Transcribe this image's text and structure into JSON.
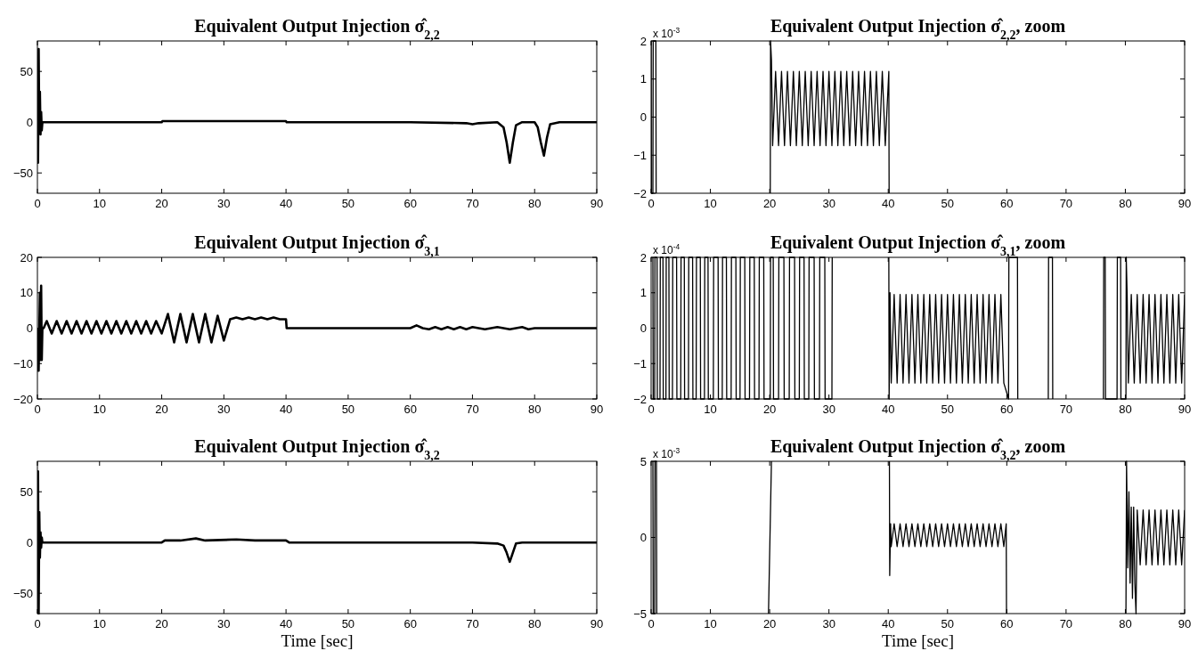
{
  "chart_data": [
    {
      "type": "line",
      "title": "Equivalent Output Injection σ̂$_{2,2}$",
      "xlim": [
        0,
        90
      ],
      "xticks": [
        0,
        10,
        20,
        30,
        40,
        50,
        60,
        70,
        80,
        90
      ],
      "ylim": [
        -70,
        80
      ],
      "yticks": [
        -50,
        0,
        50
      ],
      "grid": false,
      "series": [
        {
          "color": "#000000",
          "x": [
            0,
            0.1,
            0.2,
            0.3,
            0.4,
            0.5,
            0.6,
            0.7,
            0.8,
            1,
            5,
            20,
            20.1,
            40,
            40.1,
            60,
            69,
            70,
            71,
            74,
            75,
            75.5,
            76,
            76.5,
            77,
            78,
            80,
            80.5,
            81,
            81.5,
            82,
            82.5,
            84,
            90
          ],
          "values": [
            0,
            -40,
            72,
            -10,
            30,
            -12,
            10,
            -8,
            0,
            0,
            0,
            0,
            1,
            1,
            0,
            0,
            -1,
            -2,
            -1,
            0,
            -5,
            -20,
            -40,
            -20,
            -3,
            0,
            0,
            -5,
            -20,
            -33,
            -15,
            -2,
            0,
            0
          ]
        }
      ]
    },
    {
      "type": "line",
      "title": "Equivalent Output Injection σ̂$_{2,2}$, zoom",
      "xlim": [
        0,
        90
      ],
      "xticks": [
        0,
        10,
        20,
        30,
        40,
        50,
        60,
        70,
        80,
        90
      ],
      "ylim": [
        -2,
        2
      ],
      "yticks": [
        -2,
        -1,
        0,
        1,
        2
      ],
      "grid": false,
      "annotations": [
        "x 10$^{-3}$"
      ],
      "series": [
        {
          "color": "#000000",
          "x": [
            0,
            0.05,
            0.3,
            0.35,
            0.8,
            0.85,
            1,
            20.1,
            20.15,
            20.3,
            20.5,
            21,
            21.5,
            22,
            22.5,
            23,
            23.5,
            24,
            24.5,
            25,
            25.5,
            26,
            26.5,
            27,
            27.5,
            28,
            28.5,
            29,
            29.5,
            30,
            30.5,
            31,
            31.5,
            32,
            32.5,
            33,
            33.5,
            34,
            34.5,
            35,
            35.5,
            36,
            36.5,
            37,
            37.5,
            38,
            38.5,
            39,
            39.5,
            40.1,
            40.15
          ],
          "values": [
            2,
            -2,
            -2,
            2,
            2,
            -2,
            null,
            -2,
            2,
            1.5,
            -0.75,
            1.2,
            -0.75,
            1.2,
            -0.75,
            1.2,
            -0.75,
            1.2,
            -0.75,
            1.2,
            -0.75,
            1.2,
            -0.75,
            1.2,
            -0.75,
            1.2,
            -0.75,
            1.2,
            -0.75,
            1.2,
            -0.75,
            1.2,
            -0.75,
            1.2,
            -0.75,
            1.2,
            -0.75,
            1.2,
            -0.75,
            1.2,
            -0.75,
            1.2,
            -0.75,
            1.2,
            -0.75,
            1.2,
            -0.75,
            1.2,
            -0.75,
            1.2,
            -2
          ]
        }
      ]
    },
    {
      "type": "line",
      "title": "Equivalent Output Injection σ̂$_{3,1}$",
      "xlim": [
        0,
        90
      ],
      "xticks": [
        0,
        10,
        20,
        30,
        40,
        50,
        60,
        70,
        80,
        90
      ],
      "ylim": [
        -20,
        20
      ],
      "yticks": [
        -20,
        -10,
        0,
        10,
        20
      ],
      "grid": false,
      "series": [
        {
          "color": "#000000",
          "x": [
            0,
            0.1,
            0.2,
            0.4,
            0.5,
            0.6,
            0.7,
            0.8,
            1,
            1.5,
            2.3,
            3.1,
            3.9,
            4.7,
            5.5,
            6.3,
            7.1,
            7.9,
            8.7,
            9.5,
            10.3,
            11.1,
            11.9,
            12.7,
            13.5,
            14.3,
            15.1,
            15.9,
            16.7,
            17.5,
            18.3,
            19.1,
            20,
            21,
            22,
            23,
            24,
            25,
            26,
            27,
            28,
            29,
            30,
            31,
            32,
            33,
            34,
            35,
            36,
            37,
            38,
            39,
            40,
            40.1,
            60,
            61,
            62,
            63,
            64,
            65,
            66,
            67,
            68,
            69,
            70,
            72,
            74,
            76,
            78,
            79,
            80,
            90
          ],
          "values": [
            0,
            -12,
            -12,
            10,
            -9,
            12,
            -9,
            0,
            0,
            2,
            -1.5,
            2,
            -1.5,
            2,
            -1.5,
            2,
            -1.5,
            2,
            -1.5,
            2,
            -1.5,
            2,
            -1.5,
            2,
            -1.5,
            2,
            -1.5,
            2,
            -1.5,
            2,
            -1.5,
            2,
            -1.5,
            4,
            -4,
            4,
            -4,
            4,
            -4,
            4,
            -4,
            3.5,
            -3.5,
            2.5,
            3,
            2.5,
            3,
            2.5,
            3,
            2.5,
            3,
            2.5,
            2.5,
            0,
            0,
            0.8,
            0,
            -0.3,
            0.3,
            -0.3,
            0.3,
            -0.3,
            0.3,
            -0.3,
            0.3,
            -0.3,
            0.3,
            -0.3,
            0.3,
            -0.3,
            0,
            0
          ]
        }
      ]
    },
    {
      "type": "line",
      "title": "Equivalent Output Injection σ̂$_{3,1}$, zoom",
      "xlim": [
        0,
        90
      ],
      "xticks": [
        0,
        10,
        20,
        30,
        40,
        50,
        60,
        70,
        80,
        90
      ],
      "ylim": [
        -2,
        2
      ],
      "yticks": [
        -2,
        -1,
        0,
        1,
        2
      ],
      "grid": false,
      "annotations": [
        "x 10$^{-4}$"
      ],
      "series": [
        {
          "color": "#000000",
          "x": [
            0.3,
            0.35,
            0.6,
            0.65,
            1,
            1.05,
            1.5,
            1.55,
            2,
            2.05,
            2.5,
            2.55,
            3,
            3.05,
            3.6,
            3.65,
            4.3,
            4.35,
            5,
            5.05,
            5.6,
            5.65,
            6.3,
            6.35,
            7,
            7.05,
            7.6,
            7.65,
            8.3,
            8.35,
            9,
            9.05,
            9.6,
            9.65,
            10.5,
            10.55,
            11.3,
            11.35,
            12,
            12.05,
            12.7,
            12.75,
            13.5,
            13.55,
            14.3,
            14.35,
            15,
            15.05,
            15.8,
            15.85,
            16.6,
            16.65,
            17.4,
            17.45,
            18.2,
            18.25,
            19,
            19.05,
            20.1,
            20.15,
            20.6,
            20.65,
            21.5,
            21.55,
            22.4,
            22.45,
            23.3,
            23.35,
            24.2,
            24.25,
            25,
            25.05,
            25.8,
            25.85,
            26.6,
            26.65,
            27.5,
            27.55,
            28.4,
            28.45,
            29.3,
            29.35,
            30.5,
            30.55,
            31,
            40.1,
            40.15,
            40.3,
            40.5,
            41,
            41.5,
            42,
            42.5,
            43,
            43.5,
            44,
            44.5,
            45,
            45.5,
            46,
            46.5,
            47,
            47.5,
            48,
            48.5,
            49,
            49.5,
            50,
            50.5,
            51,
            51.5,
            52,
            52.5,
            53,
            53.5,
            54,
            54.5,
            55,
            55.5,
            56,
            56.5,
            57,
            57.5,
            58,
            58.5,
            59,
            59.5,
            60.3,
            60.35,
            61.8,
            61.85,
            64,
            67,
            67.05,
            67.7,
            67.75,
            72,
            76.3,
            76.35,
            76.6,
            76.65,
            78.6,
            78.65,
            79.2,
            79.25,
            80.1,
            80.15,
            80.3,
            80.5,
            81,
            81.5,
            82,
            82.5,
            83,
            83.5,
            84,
            84.5,
            85,
            85.5,
            86,
            86.5,
            87,
            87.5,
            88,
            88.5,
            89,
            89.5,
            90
          ],
          "values": [
            2,
            -2,
            -2,
            2,
            2,
            -2,
            -2,
            2,
            2,
            -2,
            -2,
            2,
            2,
            -2,
            -2,
            2,
            2,
            -2,
            -2,
            2,
            2,
            -2,
            -2,
            2,
            2,
            -2,
            -2,
            2,
            2,
            -2,
            -2,
            2,
            2,
            -2,
            -2,
            2,
            2,
            -2,
            -2,
            2,
            2,
            -2,
            -2,
            2,
            2,
            -2,
            -2,
            2,
            2,
            -2,
            -2,
            2,
            2,
            -2,
            -2,
            2,
            2,
            -2,
            -2,
            2,
            2,
            -2,
            -2,
            2,
            2,
            -2,
            -2,
            2,
            2,
            -2,
            -2,
            2,
            2,
            -2,
            -2,
            2,
            2,
            -2,
            -2,
            2,
            2,
            -2,
            -2,
            2,
            null,
            2,
            -2,
            1,
            -1.55,
            0.95,
            -1.55,
            0.95,
            -1.55,
            0.95,
            -1.55,
            0.95,
            -1.55,
            0.95,
            -1.55,
            0.95,
            -1.55,
            0.95,
            -1.55,
            0.95,
            -1.55,
            0.95,
            -1.55,
            0.95,
            -1.55,
            0.95,
            -1.55,
            0.95,
            -1.55,
            0.95,
            -1.55,
            0.95,
            -1.55,
            0.95,
            -1.55,
            0.95,
            -1.55,
            0.95,
            -1.55,
            0.95,
            -1.55,
            0.95,
            -1.55,
            -2,
            2,
            2,
            -2,
            null,
            -2,
            2,
            2,
            -2,
            null,
            -2,
            2,
            2,
            -2,
            -2,
            2,
            2,
            -2,
            -2,
            2,
            0.95,
            -1.55,
            0.95,
            -1.55,
            0.95,
            -1.55,
            0.95,
            -1.55,
            0.95,
            -1.55,
            0.95,
            -1.55,
            0.95,
            -1.55,
            0.95,
            -1.55,
            0.95,
            -1.55,
            0.95,
            -1.55,
            0.95
          ]
        }
      ]
    },
    {
      "type": "line",
      "title": "Equivalent Output Injection σ̂$_{3,2}$",
      "xlabel": "Time [sec]",
      "xlim": [
        0,
        90
      ],
      "xticks": [
        0,
        10,
        20,
        30,
        40,
        50,
        60,
        70,
        80,
        90
      ],
      "ylim": [
        -70,
        80
      ],
      "yticks": [
        -50,
        0,
        50
      ],
      "grid": false,
      "series": [
        {
          "color": "#000000",
          "x": [
            0,
            0.1,
            0.2,
            0.3,
            0.4,
            0.5,
            0.6,
            0.7,
            0.8,
            1,
            20,
            20.5,
            23,
            25.5,
            27,
            32,
            35,
            38,
            40,
            40.5,
            70,
            74,
            75,
            75.5,
            76,
            76.5,
            77,
            78,
            90
          ],
          "values": [
            0,
            70,
            -70,
            30,
            -15,
            10,
            -5,
            5,
            0,
            0,
            0,
            2,
            2,
            4,
            2,
            3,
            2,
            2,
            2,
            0,
            0,
            -1,
            -3,
            -10,
            -19,
            -10,
            -1,
            0,
            0
          ]
        }
      ]
    },
    {
      "type": "line",
      "title": "Equivalent Output Injection σ̂$_{3,2}$, zoom",
      "xlabel": "Time [sec]",
      "xlim": [
        0,
        90
      ],
      "xticks": [
        0,
        10,
        20,
        30,
        40,
        50,
        60,
        70,
        80,
        90
      ],
      "ylim": [
        -5,
        5
      ],
      "yticks": [
        -5,
        0,
        5
      ],
      "grid": false,
      "annotations": [
        "x 10$^{-3}$"
      ],
      "series": [
        {
          "color": "#000000",
          "x": [
            0.3,
            0.35,
            0.6,
            0.65,
            0.9,
            0.95,
            1,
            19.8,
            20.3,
            21,
            40.2,
            40.25,
            40.4,
            40.5,
            41,
            41.5,
            42,
            42.5,
            43,
            43.5,
            44,
            44.5,
            45,
            45.5,
            46,
            46.5,
            47,
            47.5,
            48,
            48.5,
            49,
            49.5,
            50,
            50.5,
            51,
            51.5,
            52,
            52.5,
            53,
            53.5,
            54,
            54.5,
            55,
            55.5,
            56,
            56.5,
            57,
            57.5,
            58,
            58.5,
            59,
            59.5,
            59.9,
            59.95,
            61,
            80.1,
            80.2,
            80.4,
            80.6,
            80.8,
            81,
            81.2,
            81.4,
            81.6,
            81.8,
            82,
            82.5,
            83,
            83.5,
            84,
            84.5,
            85,
            85.5,
            86,
            86.5,
            87,
            87.5,
            88,
            88.5,
            89,
            89.5,
            90
          ],
          "values": [
            5,
            -5,
            -5,
            5,
            5,
            -5,
            null,
            -5,
            5,
            null,
            5,
            -2.5,
            0.9,
            -0.6,
            0.9,
            -0.6,
            0.9,
            -0.6,
            0.9,
            -0.6,
            0.9,
            -0.6,
            0.9,
            -0.6,
            0.9,
            -0.6,
            0.9,
            -0.6,
            0.9,
            -0.6,
            0.9,
            -0.6,
            0.9,
            -0.6,
            0.9,
            -0.6,
            0.9,
            -0.6,
            0.9,
            -0.6,
            0.9,
            -0.6,
            0.9,
            -0.6,
            0.9,
            -0.6,
            0.9,
            -0.6,
            0.9,
            -0.6,
            0.9,
            -0.6,
            0.9,
            -5,
            null,
            -5,
            5,
            -2,
            3,
            -3,
            2,
            -4,
            2,
            -3,
            -5,
            1.8,
            -1.8,
            1.8,
            -1.8,
            1.8,
            -1.8,
            1.8,
            -1.8,
            1.8,
            -1.8,
            1.8,
            -1.8,
            1.8,
            -1.8,
            1.8,
            -1.8,
            1.8
          ]
        }
      ]
    }
  ]
}
